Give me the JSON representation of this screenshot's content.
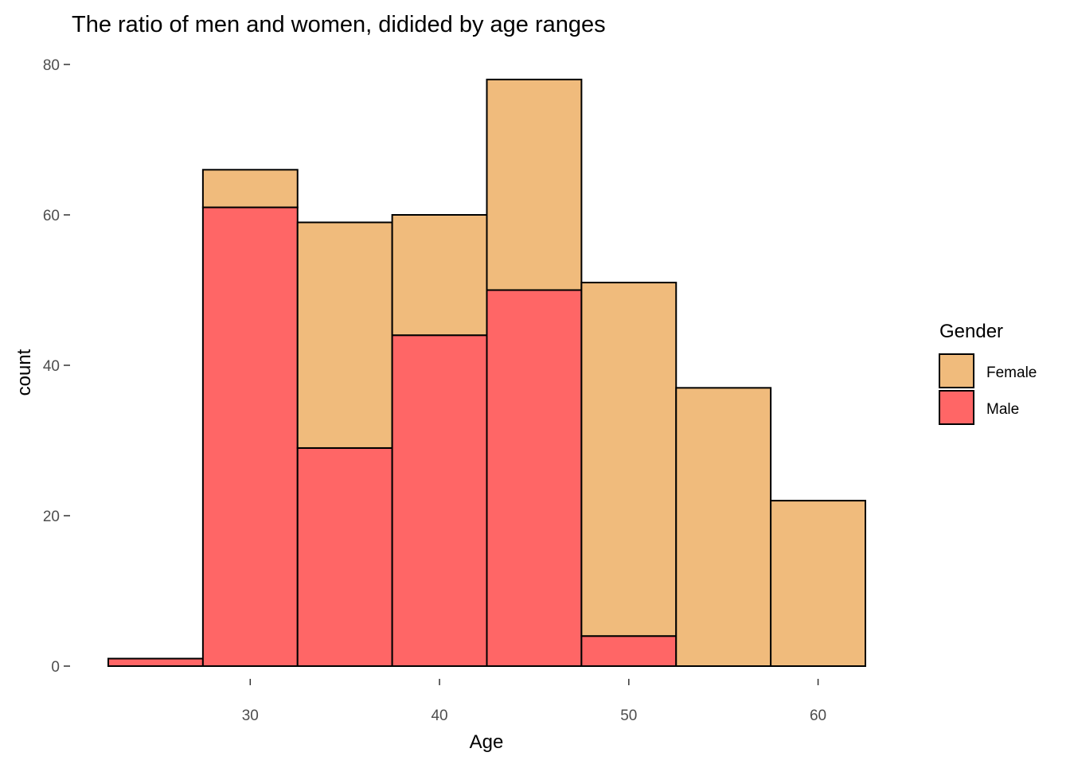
{
  "chart_data": {
    "type": "bar",
    "stacked": true,
    "histogram": true,
    "title": "The ratio of men and women, didided by age ranges",
    "xlabel": "Age",
    "ylabel": "count",
    "xlim": [
      22.5,
      62.5
    ],
    "ylim": [
      0,
      80
    ],
    "bin_width": 5,
    "bins": [
      {
        "x0": 22.5,
        "x1": 27.5
      },
      {
        "x0": 27.5,
        "x1": 32.5
      },
      {
        "x0": 32.5,
        "x1": 37.5
      },
      {
        "x0": 37.5,
        "x1": 42.5
      },
      {
        "x0": 42.5,
        "x1": 47.5
      },
      {
        "x0": 47.5,
        "x1": 52.5
      },
      {
        "x0": 52.5,
        "x1": 57.5
      },
      {
        "x0": 57.5,
        "x1": 62.5
      }
    ],
    "series": [
      {
        "name": "Male",
        "color": "#FF6666",
        "values": [
          1,
          61,
          29,
          44,
          50,
          4,
          0,
          0
        ]
      },
      {
        "name": "Female",
        "color": "#F0BB7C",
        "values": [
          0,
          5,
          30,
          16,
          28,
          47,
          37,
          22
        ]
      }
    ],
    "x_ticks": [
      30,
      40,
      50,
      60
    ],
    "y_ticks": [
      0,
      20,
      40,
      60,
      80
    ],
    "grid": false,
    "legend": {
      "title": "Gender",
      "position": "right",
      "entries": [
        {
          "label": "Female",
          "color": "#F0BB7C"
        },
        {
          "label": "Male",
          "color": "#FF6666"
        }
      ]
    },
    "bar_outline_color": "#000000"
  }
}
